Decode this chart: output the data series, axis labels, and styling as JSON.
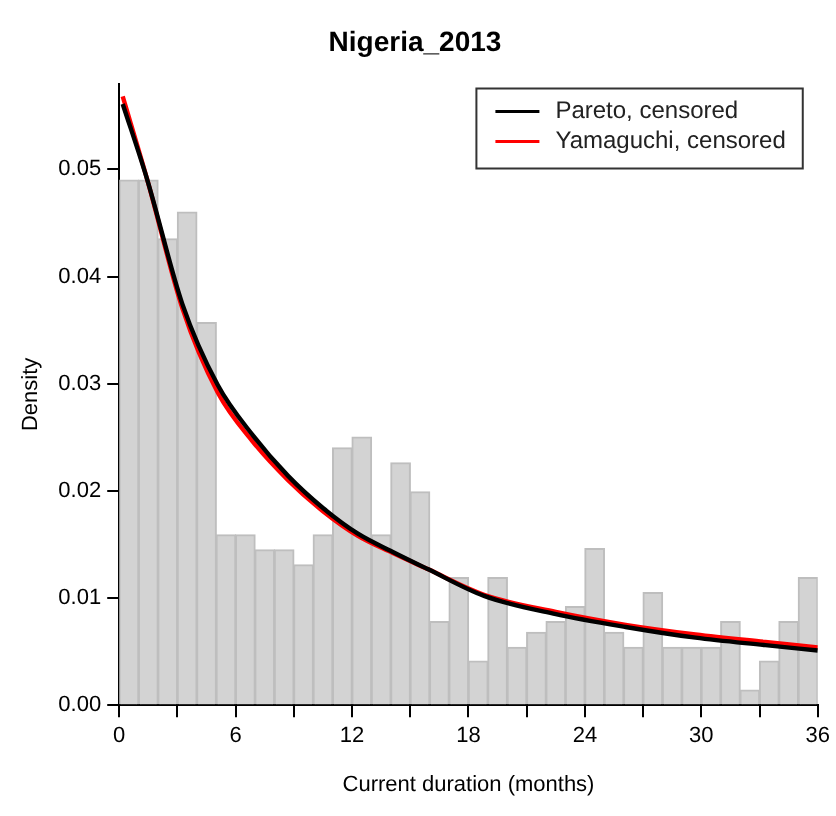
{
  "chart_data": {
    "type": "histogram",
    "title": "Nigeria_2013",
    "xlabel": "Current duration (months)",
    "ylabel": "Density",
    "bins": [
      0,
      1,
      2,
      3,
      4,
      5,
      6,
      7,
      8,
      9,
      10,
      11,
      12,
      13,
      14,
      15,
      16,
      17,
      18,
      19,
      20,
      21,
      22,
      23,
      24,
      25,
      26,
      27,
      28,
      29,
      30,
      31,
      32,
      33,
      34,
      35,
      36
    ],
    "values": [
      0.049,
      0.049,
      0.0435,
      0.046,
      0.0357,
      0.0159,
      0.0159,
      0.0145,
      0.0145,
      0.0131,
      0.0159,
      0.024,
      0.025,
      0.0159,
      0.0226,
      0.0199,
      0.0078,
      0.0119,
      0.0041,
      0.0119,
      0.0054,
      0.0068,
      0.0078,
      0.0092,
      0.0146,
      0.0068,
      0.0054,
      0.0105,
      0.0054,
      0.0054,
      0.0054,
      0.0078,
      0.0014,
      0.0041,
      0.0078,
      0.0119
    ],
    "color": "#d3d3d3",
    "series": [
      {
        "type": "line",
        "name": "Pareto, censored",
        "color": "#000000",
        "x": [
          0.18,
          1.45,
          3.26,
          5.07,
          6.88,
          8.7,
          10.5,
          12.3,
          14.1,
          15.9,
          18.8,
          22.5,
          26.1,
          29.7,
          33.3,
          36
        ],
        "values": [
          0.0561,
          0.049,
          0.0374,
          0.0299,
          0.0252,
          0.0214,
          0.0184,
          0.016,
          0.0143,
          0.0127,
          0.0102,
          0.0085,
          0.0073,
          0.0063,
          0.0056,
          0.0051
        ]
      },
      {
        "type": "line",
        "name": "Yamaguchi, censored",
        "color": "#ff0000",
        "x": [
          0.18,
          1.45,
          3.26,
          5.07,
          6.88,
          8.7,
          10.5,
          12.3,
          14.1,
          15.9,
          18.8,
          22.5,
          26.1,
          29.7,
          33.3,
          36
        ],
        "values": [
          0.0568,
          0.049,
          0.037,
          0.0292,
          0.0246,
          0.021,
          0.0181,
          0.0158,
          0.0142,
          0.0127,
          0.0103,
          0.0087,
          0.0075,
          0.0066,
          0.0059,
          0.0054
        ]
      }
    ],
    "xlim": [
      0,
      36
    ],
    "ylim": [
      0,
      0.058
    ],
    "xticks": [
      0,
      {
        "value": 3,
        "label": null
      },
      6,
      {
        "value": 9,
        "label": null
      },
      12,
      {
        "value": 15,
        "label": null
      },
      18,
      {
        "value": 21,
        "label": null
      },
      24,
      {
        "value": 27,
        "label": null
      },
      30,
      {
        "value": 33,
        "label": null
      },
      36
    ],
    "yticks": [
      {
        "value": 0,
        "label": "0.00"
      },
      {
        "value": 0.01,
        "label": "0.01"
      },
      {
        "value": 0.02,
        "label": "0.02"
      },
      {
        "value": 0.03,
        "label": "0.03"
      },
      {
        "value": 0.04,
        "label": "0.04"
      },
      {
        "value": 0.05,
        "label": "0.05"
      }
    ],
    "grid": false,
    "legend": "top right",
    "marker": "none",
    "line_style": "solid"
  }
}
